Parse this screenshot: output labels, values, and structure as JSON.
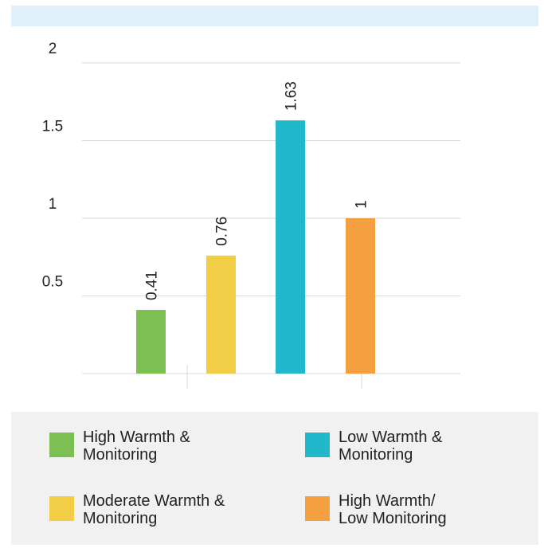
{
  "colors": {
    "band": "#dff0fa",
    "grid": "#d9d9d9",
    "legend_bg": "#f1f1f1"
  },
  "chart_data": {
    "type": "bar",
    "title": "",
    "xlabel": "",
    "ylabel": "",
    "ylim": [
      0,
      2
    ],
    "grid": true,
    "legend_position": "bottom",
    "y_ticks": [
      "0.5",
      "1",
      "1.5",
      "2"
    ],
    "categories": [
      "High Warmth & Monitoring",
      "Moderate Warmth & Monitoring",
      "Low Warmth & Monitoring",
      "High Warmth/ Low Monitoring"
    ],
    "values": [
      0.41,
      0.76,
      1.63,
      1
    ],
    "value_labels": [
      "0.41",
      "0.76",
      "1.63",
      "1"
    ],
    "colors": [
      "#7cbf52",
      "#f2cd46",
      "#22b8cb",
      "#f4a040"
    ]
  },
  "legend": {
    "items": [
      {
        "label": "High Warmth &\nMonitoring",
        "color": "#7cbf52"
      },
      {
        "label": "Low Warmth &\nMonitoring",
        "color": "#22b8cb"
      },
      {
        "label": "Moderate Warmth &\nMonitoring",
        "color": "#f2cd46"
      },
      {
        "label": "High Warmth/\nLow Monitoring",
        "color": "#f4a040"
      }
    ]
  }
}
